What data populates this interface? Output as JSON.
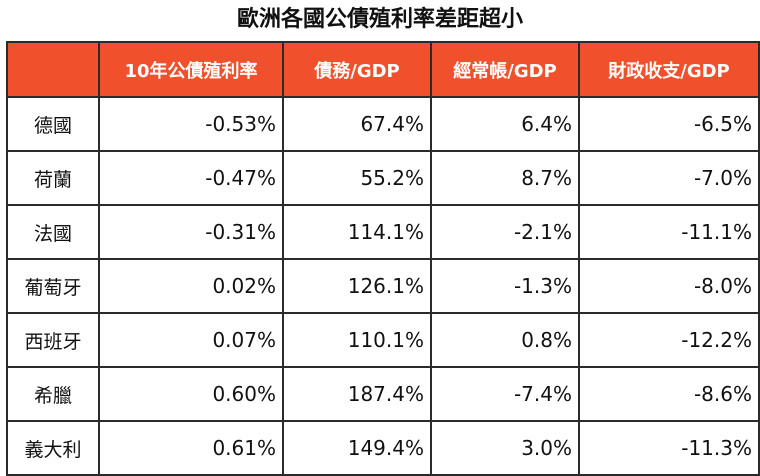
{
  "title": "歐洲各國公債殖利率差距超小",
  "table": {
    "headers": [
      "",
      "10年公債殖利率",
      "債務/GDP",
      "經常帳/GDP",
      "財政收支/GDP"
    ],
    "rows": [
      {
        "country": "德國",
        "yield": "-0.53%",
        "debt": "67.4%",
        "current": "6.4%",
        "fiscal": "-6.5%"
      },
      {
        "country": "荷蘭",
        "yield": "-0.47%",
        "debt": "55.2%",
        "current": "8.7%",
        "fiscal": "-7.0%"
      },
      {
        "country": "法國",
        "yield": "-0.31%",
        "debt": "114.1%",
        "current": "-2.1%",
        "fiscal": "-11.1%"
      },
      {
        "country": "葡萄牙",
        "yield": "0.02%",
        "debt": "126.1%",
        "current": "-1.3%",
        "fiscal": "-8.0%"
      },
      {
        "country": "西班牙",
        "yield": "0.07%",
        "debt": "110.1%",
        "current": "0.8%",
        "fiscal": "-12.2%"
      },
      {
        "country": "希臘",
        "yield": "0.60%",
        "debt": "187.4%",
        "current": "-7.4%",
        "fiscal": "-8.6%"
      },
      {
        "country": "義大利",
        "yield": "0.61%",
        "debt": "149.4%",
        "current": "3.0%",
        "fiscal": "-11.3%"
      }
    ]
  },
  "colors": {
    "header_bg": "#f0502b",
    "header_text": "#ffffff",
    "border": "#2b2b2b"
  }
}
